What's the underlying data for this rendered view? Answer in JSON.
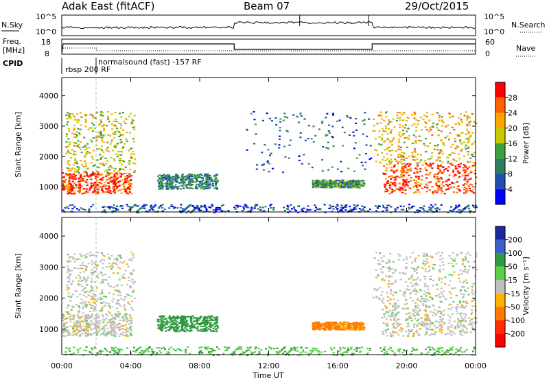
{
  "header": {
    "title": "Adak East (fitACF)",
    "beam": "Beam 07",
    "date": "29/Oct/2015"
  },
  "top_strip": {
    "nsky_label": "N.Sky",
    "nsky_ticks": [
      "10^5",
      "10^0"
    ],
    "nsearch_label": "N.Search",
    "nsearch_ticks": [
      "10^5",
      "10^0"
    ],
    "freq_label_1": "Freq.",
    "freq_label_2": "[MHz]",
    "freq_ticks": [
      "18",
      "8"
    ],
    "nave_label": "Nave",
    "nave_ticks": [
      "60",
      "0"
    ],
    "cpid_label": "CPID",
    "cpid_modes": [
      {
        "label": "rbsp 200 RF",
        "start_hour": 0.0
      },
      {
        "label": "normalsound (fast) -157 RF",
        "start_hour": 2.0
      }
    ]
  },
  "chart_data": [
    {
      "type": "heatmap",
      "title": "",
      "xlabel": "",
      "ylabel": "Slant Range [km]",
      "xlim": [
        0,
        24
      ],
      "ylim": [
        180,
        4600
      ],
      "yticks": [
        1000,
        2000,
        3000,
        4000
      ],
      "colorbar": {
        "label": "Power [dB]",
        "ticks": [
          4,
          8,
          12,
          16,
          20,
          24,
          28
        ],
        "range": [
          0,
          32
        ],
        "colors": [
          "#0000ff",
          "#1f4fb0",
          "#2f7f5f",
          "#40a040",
          "#c8c800",
          "#ffa500",
          "#ff6000",
          "#ff0000"
        ]
      },
      "echo_regions": [
        {
          "name": "early-main",
          "start_hour": 0.0,
          "end_hour": 4.0,
          "range_low": 800,
          "range_high": 1500,
          "level": 28
        },
        {
          "name": "early-upper",
          "start_hour": 0.2,
          "end_hour": 4.2,
          "range_low": 1500,
          "range_high": 3500,
          "level": 18
        },
        {
          "name": "morning-streak",
          "start_hour": 5.5,
          "end_hour": 9.0,
          "range_low": 950,
          "range_high": 1450,
          "level": 10
        },
        {
          "name": "afternoon-band",
          "start_hour": 14.5,
          "end_hour": 17.5,
          "range_low": 1000,
          "range_high": 1250,
          "level": 12
        },
        {
          "name": "evening-main",
          "start_hour": 18.5,
          "end_hour": 24.0,
          "range_low": 800,
          "range_high": 1800,
          "level": 28
        },
        {
          "name": "evening-upper",
          "start_hour": 18.0,
          "end_hour": 24.0,
          "range_low": 1800,
          "range_high": 3500,
          "level": 20
        },
        {
          "name": "midday-scatter",
          "start_hour": 10.5,
          "end_hour": 18.0,
          "range_low": 1500,
          "range_high": 3500,
          "level": 8
        },
        {
          "name": "ground-near",
          "start_hour": 0.0,
          "end_hour": 24.0,
          "range_low": 180,
          "range_high": 450,
          "level": 6
        }
      ]
    },
    {
      "type": "heatmap",
      "title": "",
      "xlabel": "Time UT",
      "ylabel": "Slant Range [km]",
      "xlim": [
        0,
        24
      ],
      "ylim": [
        180,
        4600
      ],
      "yticks": [
        1000,
        2000,
        3000,
        4000
      ],
      "xticks": [
        "00:00",
        "04:00",
        "08:00",
        "12:00",
        "16:00",
        "20:00",
        "00:00"
      ],
      "xtick_hours": [
        0,
        4,
        8,
        12,
        16,
        20,
        24
      ],
      "colorbar": {
        "label": "Velocity [m s⁻¹]",
        "ticks": [
          "200",
          "100",
          "50",
          "15",
          "-15",
          "-50",
          "-100",
          "-200"
        ],
        "colors": [
          "#1a2a9a",
          "#3a5fc8",
          "#2f9a3f",
          "#5ad04a",
          "#bfbfbf",
          "#ffb000",
          "#ff7a00",
          "#ff3000",
          "#ff0000"
        ]
      },
      "echo_regions": [
        {
          "name": "early-main",
          "start_hour": 0.0,
          "end_hour": 4.0,
          "range_low": 800,
          "range_high": 1500,
          "velocity": 0
        },
        {
          "name": "early-upper",
          "start_hour": 0.2,
          "end_hour": 4.2,
          "range_low": 1500,
          "range_high": 3500,
          "velocity": 0
        },
        {
          "name": "morning-streak",
          "start_hour": 5.5,
          "end_hour": 9.0,
          "range_low": 950,
          "range_high": 1450,
          "velocity": 70
        },
        {
          "name": "afternoon-band",
          "start_hour": 14.5,
          "end_hour": 17.5,
          "range_low": 1000,
          "range_high": 1250,
          "velocity": -60
        },
        {
          "name": "evening-main",
          "start_hour": 18.5,
          "end_hour": 24.0,
          "range_low": 800,
          "range_high": 1800,
          "velocity": 0
        },
        {
          "name": "evening-upper",
          "start_hour": 18.0,
          "end_hour": 24.0,
          "range_low": 1800,
          "range_high": 3500,
          "velocity": 0
        },
        {
          "name": "ground-near",
          "start_hour": 0.0,
          "end_hour": 24.0,
          "range_low": 180,
          "range_high": 450,
          "velocity": 40
        }
      ]
    }
  ]
}
